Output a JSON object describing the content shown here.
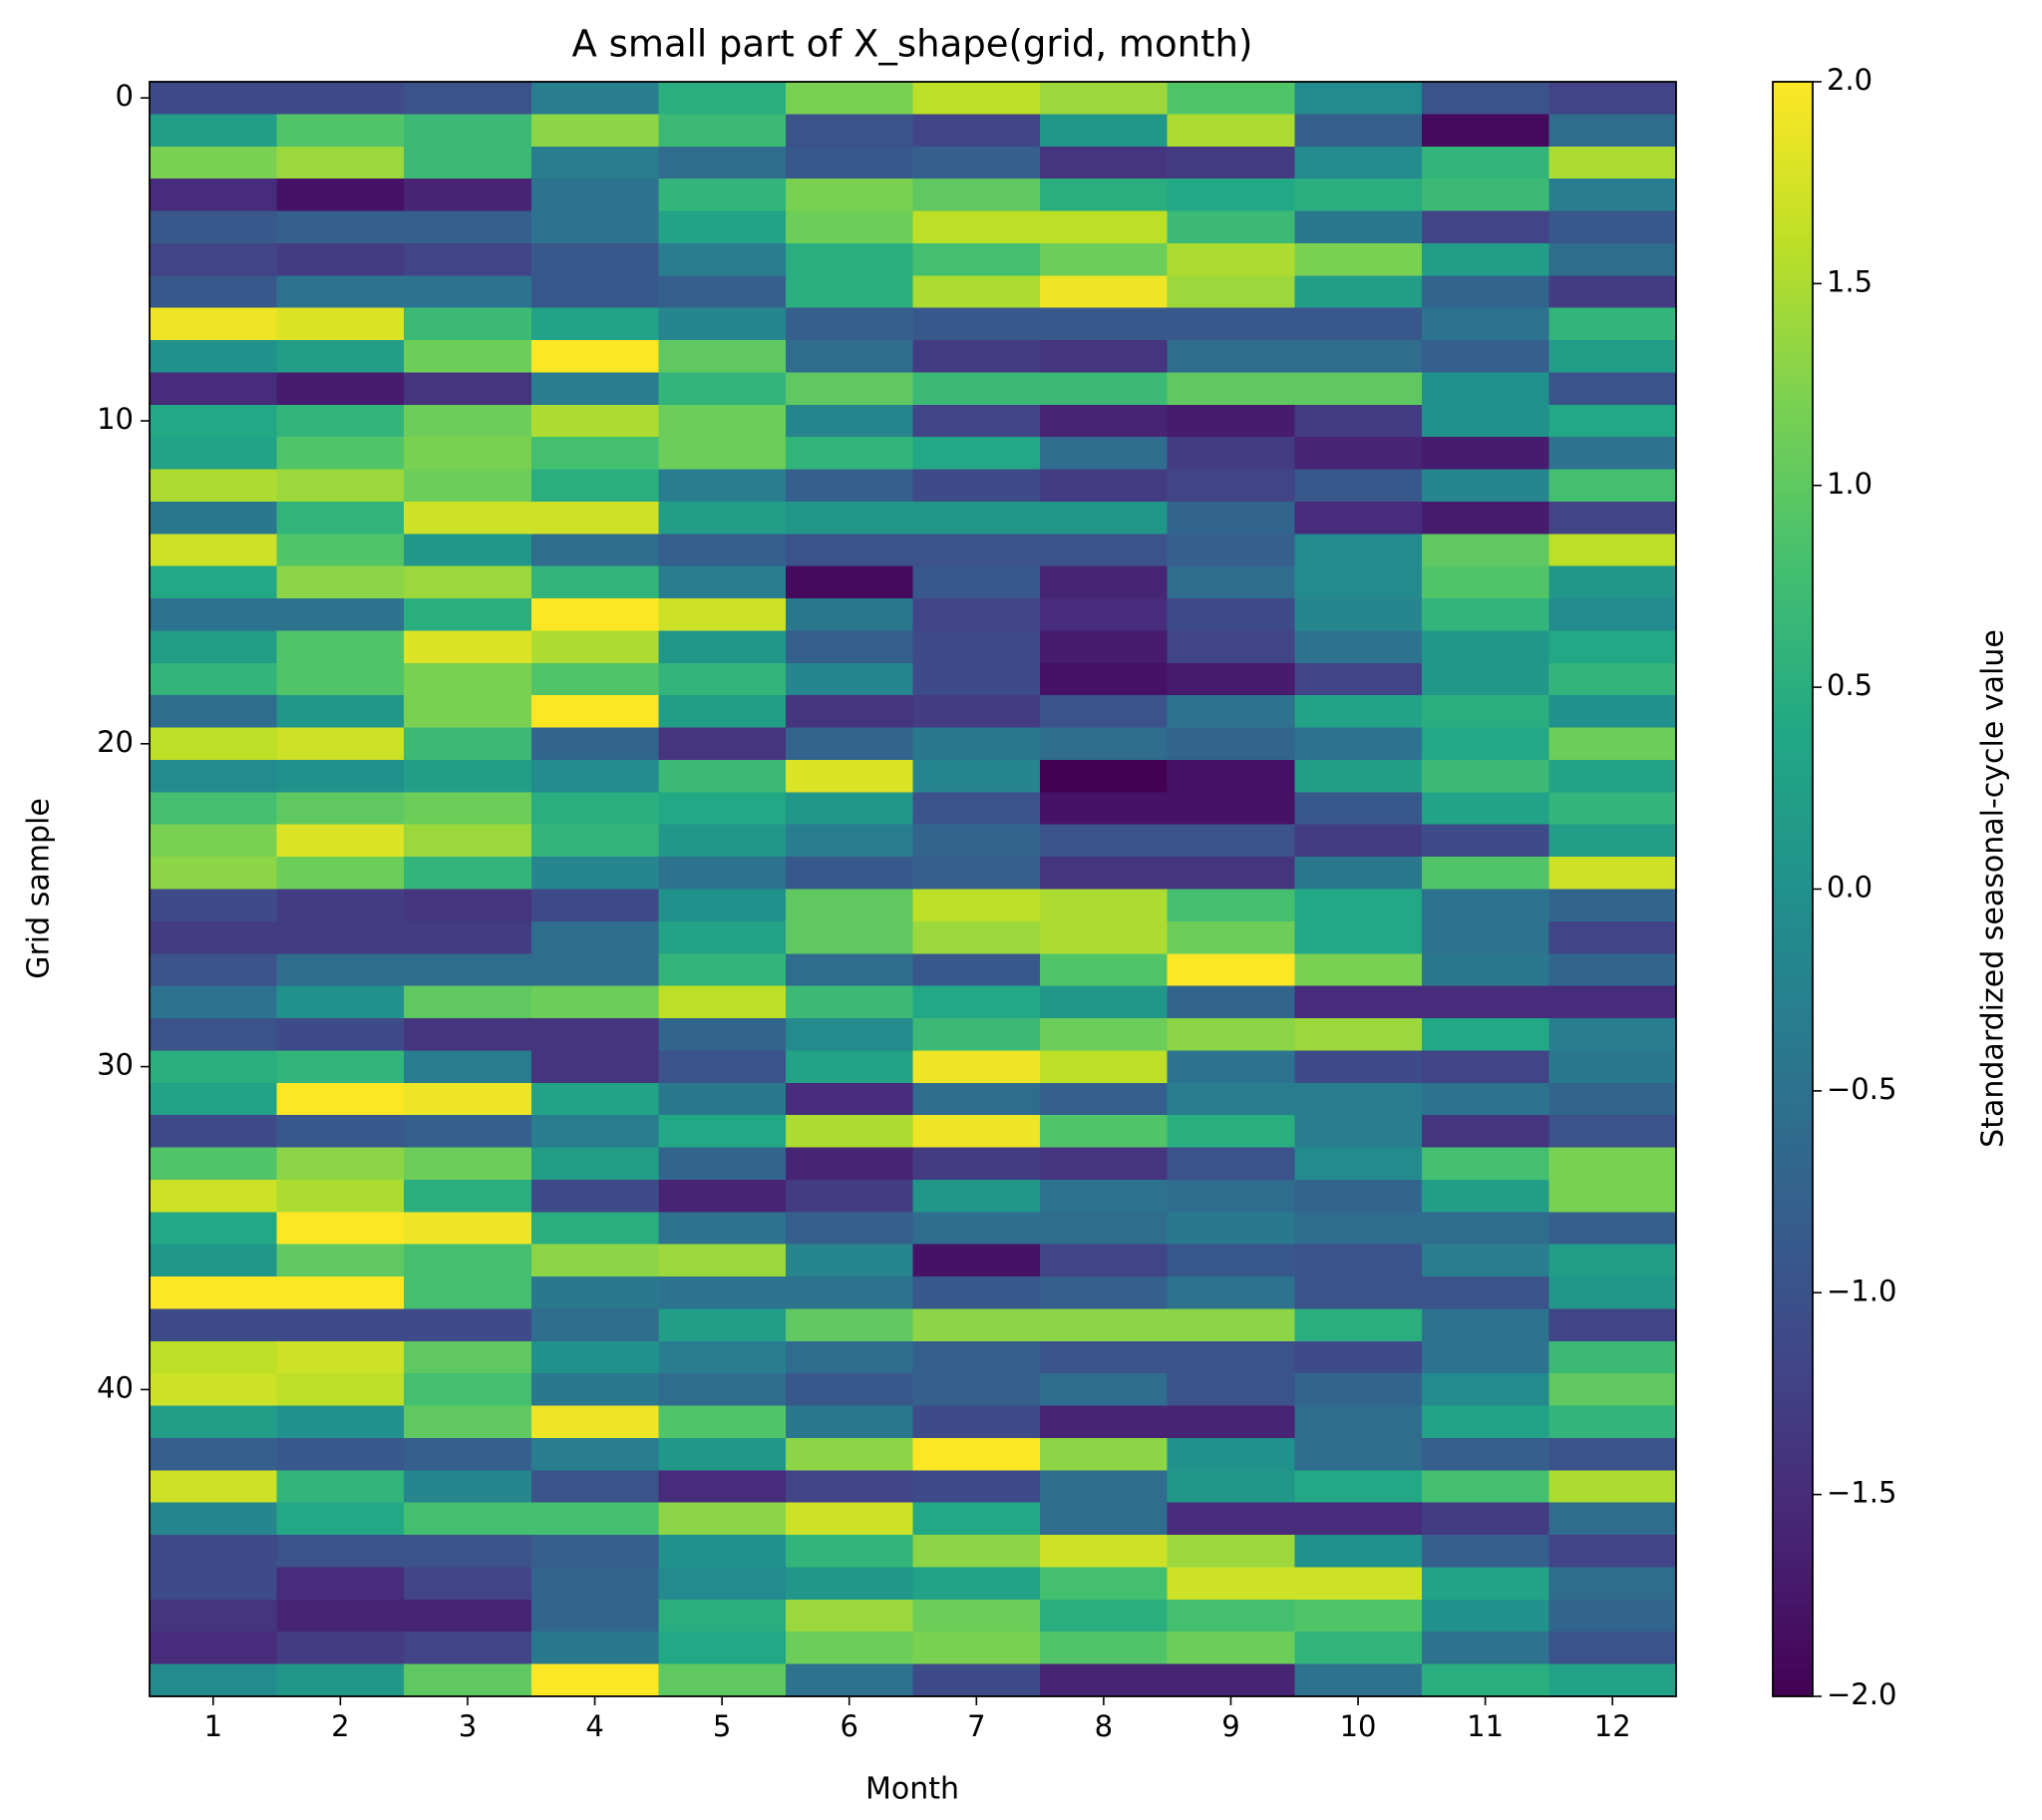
{
  "chart_data": {
    "type": "heatmap",
    "title": "A small part of X_shape(grid, month)",
    "x_label": "Month",
    "y_label": "Grid sample",
    "colorbar_label": "Standardized seasonal-cycle value",
    "colormap": "viridis",
    "xlim": [
      0.5,
      12.5
    ],
    "xticks": [
      1,
      2,
      3,
      4,
      5,
      6,
      7,
      8,
      9,
      10,
      11,
      12
    ],
    "ylim": [
      49.5,
      -0.5
    ],
    "yticks": [
      0,
      10,
      20,
      30,
      40
    ],
    "clim": [
      -2,
      2
    ],
    "cticks": [
      {
        "value": -2,
        "label": "−2.0"
      },
      {
        "value": -1.5,
        "label": "−1.5"
      },
      {
        "value": -1,
        "label": "−1.0"
      },
      {
        "value": -0.5,
        "label": "−0.5"
      },
      {
        "value": 0,
        "label": "0.0"
      },
      {
        "value": 0.5,
        "label": "0.5"
      },
      {
        "value": 1,
        "label": "1.0"
      },
      {
        "value": 1.5,
        "label": "1.5"
      },
      {
        "value": 2,
        "label": "2.0"
      }
    ],
    "z": [
      [
        -1.1,
        -1.1,
        -1.0,
        -0.3,
        0.5,
        1.2,
        1.6,
        1.4,
        0.9,
        -0.1,
        -1.0,
        -1.2
      ],
      [
        0.2,
        0.9,
        0.7,
        1.3,
        0.7,
        -1.0,
        -1.2,
        0.1,
        1.5,
        -0.8,
        -1.9,
        -0.6
      ],
      [
        1.2,
        1.4,
        0.7,
        -0.3,
        -0.6,
        -0.9,
        -0.8,
        -1.4,
        -1.3,
        -0.1,
        0.6,
        1.5
      ],
      [
        -1.5,
        -1.8,
        -1.6,
        -0.5,
        0.6,
        1.2,
        1.0,
        0.5,
        0.4,
        0.5,
        0.7,
        -0.3
      ],
      [
        -0.9,
        -0.8,
        -0.8,
        -0.5,
        0.3,
        1.1,
        1.6,
        1.6,
        0.7,
        -0.4,
        -1.2,
        -0.9
      ],
      [
        -1.2,
        -1.3,
        -1.2,
        -0.9,
        -0.3,
        0.5,
        0.8,
        1.1,
        1.5,
        1.2,
        0.2,
        -0.6
      ],
      [
        -0.9,
        -0.5,
        -0.5,
        -0.9,
        -0.8,
        0.5,
        1.5,
        1.9,
        1.4,
        0.2,
        -0.7,
        -1.3
      ],
      [
        1.9,
        1.8,
        0.7,
        0.3,
        -0.2,
        -0.8,
        -0.9,
        -0.9,
        -0.9,
        -0.9,
        -0.5,
        0.6
      ],
      [
        0.0,
        0.2,
        1.1,
        2.0,
        1.0,
        -0.6,
        -1.3,
        -1.4,
        -0.6,
        -0.6,
        -0.8,
        0.2
      ],
      [
        -1.5,
        -1.7,
        -1.4,
        -0.3,
        0.6,
        1.0,
        0.7,
        0.7,
        1.0,
        1.0,
        0.0,
        -1.0
      ],
      [
        0.4,
        0.6,
        1.1,
        1.5,
        1.1,
        -0.2,
        -1.2,
        -1.6,
        -1.7,
        -1.3,
        0.0,
        0.4
      ],
      [
        0.3,
        0.9,
        1.2,
        0.8,
        1.1,
        0.6,
        0.4,
        -0.6,
        -1.3,
        -1.6,
        -1.7,
        -0.5
      ],
      [
        1.5,
        1.4,
        1.1,
        0.5,
        -0.3,
        -0.8,
        -1.1,
        -1.3,
        -1.2,
        -0.9,
        -0.2,
        0.8
      ],
      [
        -0.4,
        0.6,
        1.7,
        1.7,
        0.2,
        0.1,
        0.1,
        0.1,
        -0.7,
        -1.5,
        -1.7,
        -1.2
      ],
      [
        1.7,
        0.9,
        0.1,
        -0.6,
        -0.8,
        -1.0,
        -1.0,
        -1.0,
        -0.8,
        -0.1,
        1.0,
        1.6
      ],
      [
        0.4,
        1.3,
        1.4,
        0.6,
        -0.3,
        -1.9,
        -0.9,
        -1.6,
        -0.6,
        -0.1,
        0.9,
        0.1
      ],
      [
        -0.5,
        -0.5,
        0.5,
        2.0,
        1.7,
        -0.4,
        -1.2,
        -1.5,
        -1.1,
        -0.2,
        0.6,
        -0.1
      ],
      [
        0.2,
        0.9,
        1.8,
        1.5,
        0.1,
        -0.8,
        -1.1,
        -1.7,
        -1.2,
        -0.5,
        0.1,
        0.4
      ],
      [
        0.6,
        0.9,
        1.2,
        0.9,
        0.6,
        -0.2,
        -1.1,
        -1.8,
        -1.7,
        -1.2,
        0.1,
        0.6
      ],
      [
        -0.6,
        0.1,
        1.2,
        2.0,
        0.2,
        -1.4,
        -1.3,
        -1.0,
        -0.5,
        0.3,
        0.5,
        0.0
      ],
      [
        1.6,
        1.7,
        0.7,
        -0.7,
        -1.4,
        -0.7,
        -0.4,
        -0.6,
        -0.7,
        -0.5,
        0.4,
        1.1
      ],
      [
        -0.1,
        0.0,
        0.2,
        -0.1,
        0.7,
        1.8,
        -0.2,
        -2.0,
        -1.8,
        0.2,
        0.7,
        0.3
      ],
      [
        0.8,
        1.0,
        1.1,
        0.5,
        0.4,
        0.1,
        -1.0,
        -1.8,
        -1.8,
        -0.9,
        0.3,
        0.6
      ],
      [
        1.2,
        1.8,
        1.4,
        0.6,
        0.1,
        -0.3,
        -0.7,
        -1.0,
        -1.0,
        -1.3,
        -1.1,
        0.2
      ],
      [
        1.3,
        1.1,
        0.6,
        -0.2,
        -0.5,
        -0.9,
        -0.8,
        -1.4,
        -1.4,
        -0.4,
        0.9,
        1.7
      ],
      [
        -1.1,
        -1.3,
        -1.4,
        -1.1,
        0.0,
        1.0,
        1.6,
        1.5,
        0.8,
        0.4,
        -0.5,
        -0.7
      ],
      [
        -1.3,
        -1.3,
        -1.3,
        -0.6,
        0.3,
        1.0,
        1.4,
        1.5,
        1.1,
        0.4,
        -0.5,
        -1.2
      ],
      [
        -1.0,
        -0.6,
        -0.6,
        -0.6,
        0.6,
        -0.6,
        -0.9,
        0.9,
        2.0,
        1.2,
        -0.4,
        -0.7
      ],
      [
        -0.5,
        0.0,
        1.0,
        1.1,
        1.6,
        0.7,
        0.4,
        0.1,
        -0.7,
        -1.5,
        -1.5,
        -1.5
      ],
      [
        -1.0,
        -1.1,
        -1.4,
        -1.4,
        -0.7,
        -0.1,
        0.7,
        1.1,
        1.3,
        1.4,
        0.4,
        -0.3
      ],
      [
        0.5,
        0.6,
        -0.3,
        -1.4,
        -1.0,
        0.3,
        1.9,
        1.6,
        -0.5,
        -1.1,
        -1.2,
        -0.4
      ],
      [
        0.3,
        2.0,
        1.9,
        0.3,
        -0.4,
        -1.5,
        -0.6,
        -0.8,
        -0.3,
        -0.3,
        -0.5,
        -0.7
      ],
      [
        -1.1,
        -0.9,
        -0.8,
        -0.3,
        0.4,
        1.5,
        1.9,
        0.9,
        0.5,
        -0.3,
        -1.4,
        -1.0
      ],
      [
        0.9,
        1.3,
        1.1,
        0.2,
        -0.7,
        -1.6,
        -1.3,
        -1.4,
        -1.0,
        -0.1,
        0.8,
        1.2
      ],
      [
        1.7,
        1.5,
        0.5,
        -1.1,
        -1.6,
        -1.3,
        0.1,
        -0.5,
        -0.6,
        -0.7,
        0.2,
        1.2
      ],
      [
        0.4,
        2.0,
        1.9,
        0.5,
        -0.5,
        -0.8,
        -0.6,
        -0.6,
        -0.4,
        -0.6,
        -0.6,
        -0.8
      ],
      [
        0.1,
        1.0,
        0.8,
        1.3,
        1.4,
        -0.2,
        -1.8,
        -1.2,
        -0.9,
        -1.0,
        -0.3,
        0.2
      ],
      [
        2.0,
        2.0,
        0.8,
        -0.4,
        -0.5,
        -0.5,
        -0.9,
        -0.8,
        -0.5,
        -1.0,
        -1.0,
        0.1
      ],
      [
        -1.1,
        -1.1,
        -1.1,
        -0.6,
        0.2,
        1.0,
        1.3,
        1.3,
        1.3,
        0.5,
        -0.5,
        -1.2
      ],
      [
        1.6,
        1.7,
        1.0,
        0.0,
        -0.3,
        -0.6,
        -0.8,
        -1.0,
        -1.0,
        -1.1,
        -0.5,
        0.7
      ],
      [
        1.7,
        1.6,
        0.8,
        -0.4,
        -0.6,
        -0.9,
        -0.8,
        -0.6,
        -1.0,
        -0.7,
        -0.1,
        1.0
      ],
      [
        0.2,
        0.0,
        1.0,
        1.9,
        0.9,
        -0.4,
        -1.1,
        -1.6,
        -1.6,
        -0.6,
        0.3,
        0.6
      ],
      [
        -0.8,
        -0.9,
        -0.8,
        -0.3,
        0.1,
        1.3,
        2.0,
        1.3,
        0.0,
        -0.6,
        -0.8,
        -1.0
      ],
      [
        1.7,
        0.6,
        -0.2,
        -1.0,
        -1.5,
        -1.2,
        -1.1,
        -0.6,
        0.1,
        0.4,
        0.8,
        1.5
      ],
      [
        -0.2,
        0.4,
        0.8,
        0.8,
        1.3,
        1.7,
        0.4,
        -0.6,
        -1.5,
        -1.5,
        -1.3,
        -0.6
      ],
      [
        -1.1,
        -1.0,
        -1.0,
        -0.8,
        0.0,
        0.6,
        1.3,
        1.7,
        1.4,
        0.0,
        -0.8,
        -1.2
      ],
      [
        -1.1,
        -1.5,
        -1.2,
        -0.7,
        -0.1,
        0.1,
        0.3,
        0.8,
        1.7,
        1.7,
        0.3,
        -0.6
      ],
      [
        -1.4,
        -1.6,
        -1.6,
        -0.7,
        0.5,
        1.4,
        1.1,
        0.5,
        0.8,
        0.9,
        0.0,
        -0.7
      ],
      [
        -1.5,
        -1.3,
        -1.2,
        -0.4,
        0.4,
        1.1,
        1.2,
        0.9,
        1.1,
        0.6,
        -0.5,
        -1.0
      ],
      [
        -0.1,
        0.1,
        1.0,
        2.0,
        1.0,
        -0.5,
        -1.1,
        -1.6,
        -1.6,
        -0.5,
        0.5,
        0.3
      ]
    ]
  }
}
